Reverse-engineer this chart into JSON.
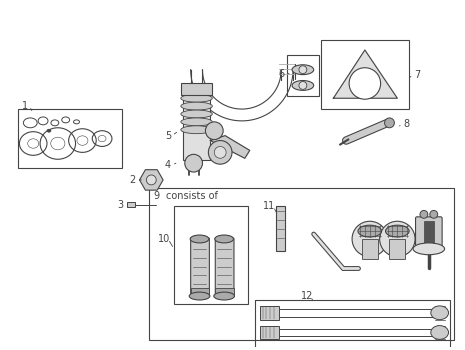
{
  "bg_color": "#ffffff",
  "line_color": "#444444",
  "gray1": "#aaaaaa",
  "gray2": "#cccccc",
  "gray3": "#e0e0e0",
  "figure_width": 4.65,
  "figure_height": 3.5,
  "dpi": 100
}
